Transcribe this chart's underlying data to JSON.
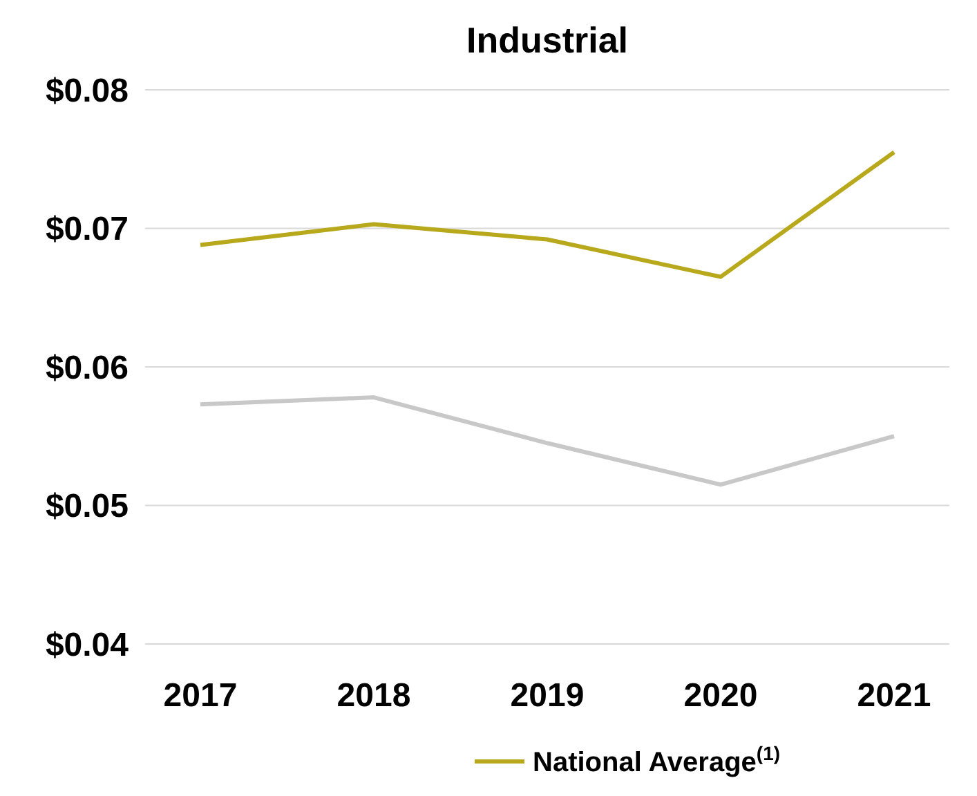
{
  "chart_data": {
    "type": "line",
    "title": "Industrial",
    "categories": [
      "2017",
      "2018",
      "2019",
      "2020",
      "2021"
    ],
    "series": [
      {
        "color": "#c8c8c8",
        "values": [
          0.0573,
          0.0578,
          0.0545,
          0.0515,
          0.055
        ]
      },
      {
        "name": "National Average$^{(1)}$",
        "color": "#b8a81c",
        "values": [
          0.0688,
          0.0703,
          0.0692,
          0.0665,
          0.0755
        ]
      }
    ],
    "ylim": [
      0.04,
      0.08
    ],
    "yticks": [
      {
        "value": 0.04,
        "label": "$0.04"
      },
      {
        "value": 0.05,
        "label": "$0.05"
      },
      {
        "value": 0.06,
        "label": "$0.06"
      },
      {
        "value": 0.07,
        "label": "$0.07"
      },
      {
        "value": 0.08,
        "label": "$0.08"
      }
    ],
    "grid": "y",
    "legend": "bottom",
    "marker": "none",
    "line_style": "solid"
  }
}
